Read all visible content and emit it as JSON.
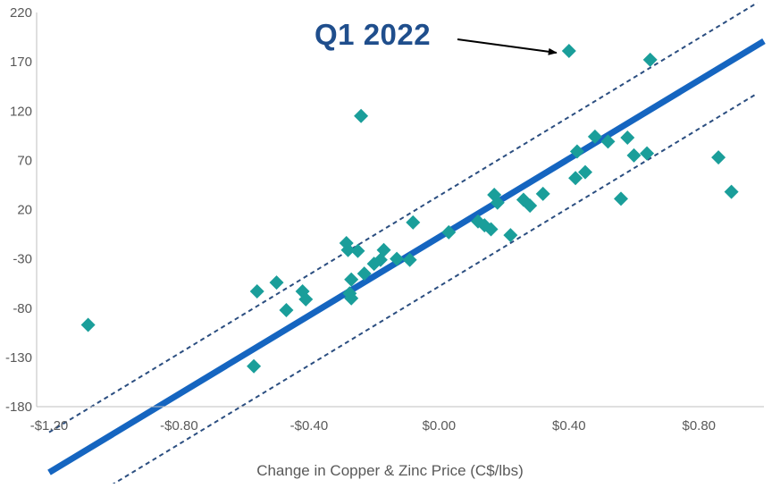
{
  "chart_data": {
    "type": "scatter",
    "title": "",
    "xlabel": "Change in Copper & Zinc Price (C$/lbs)",
    "ylabel": "",
    "xlim": [
      -1.2,
      1.0
    ],
    "ylim": [
      -180,
      220
    ],
    "x_ticks": [
      -1.2,
      -0.8,
      -0.4,
      0.0,
      0.4,
      0.8
    ],
    "x_tick_labels": [
      "-$1.20",
      "-$0.80",
      "-$0.40",
      "$0.00",
      "$0.40",
      "$0.80"
    ],
    "y_ticks": [
      -180,
      -130,
      -80,
      -30,
      20,
      70,
      120,
      170,
      220
    ],
    "y_tick_labels": [
      "-180",
      "-130",
      "-80",
      "-30",
      "20",
      "70",
      "120",
      "170",
      "220"
    ],
    "grid": false,
    "legend": "none",
    "points": [
      {
        "x": -1.08,
        "y": -97
      },
      {
        "x": -0.57,
        "y": -139
      },
      {
        "x": -0.56,
        "y": -63
      },
      {
        "x": -0.5,
        "y": -54
      },
      {
        "x": -0.47,
        "y": -82
      },
      {
        "x": -0.42,
        "y": -63
      },
      {
        "x": -0.41,
        "y": -71
      },
      {
        "x": -0.285,
        "y": -14
      },
      {
        "x": -0.28,
        "y": -21
      },
      {
        "x": -0.275,
        "y": -65
      },
      {
        "x": -0.27,
        "y": -70
      },
      {
        "x": -0.27,
        "y": -51
      },
      {
        "x": -0.25,
        "y": -22
      },
      {
        "x": -0.24,
        "y": 115
      },
      {
        "x": -0.23,
        "y": -45
      },
      {
        "x": -0.2,
        "y": -35
      },
      {
        "x": -0.18,
        "y": -31
      },
      {
        "x": -0.17,
        "y": -21
      },
      {
        "x": -0.13,
        "y": -30
      },
      {
        "x": -0.09,
        "y": -31
      },
      {
        "x": -0.08,
        "y": 7
      },
      {
        "x": 0.03,
        "y": -3
      },
      {
        "x": 0.12,
        "y": 8
      },
      {
        "x": 0.14,
        "y": 4
      },
      {
        "x": 0.16,
        "y": 0
      },
      {
        "x": 0.17,
        "y": 35
      },
      {
        "x": 0.18,
        "y": 27
      },
      {
        "x": 0.22,
        "y": -6
      },
      {
        "x": 0.26,
        "y": 30
      },
      {
        "x": 0.28,
        "y": 24
      },
      {
        "x": 0.32,
        "y": 36
      },
      {
        "x": 0.4,
        "y": 181
      },
      {
        "x": 0.42,
        "y": 52
      },
      {
        "x": 0.425,
        "y": 79
      },
      {
        "x": 0.45,
        "y": 58
      },
      {
        "x": 0.48,
        "y": 94
      },
      {
        "x": 0.52,
        "y": 89
      },
      {
        "x": 0.56,
        "y": 31
      },
      {
        "x": 0.58,
        "y": 93
      },
      {
        "x": 0.6,
        "y": 75
      },
      {
        "x": 0.64,
        "y": 77
      },
      {
        "x": 0.65,
        "y": 172
      },
      {
        "x": 0.86,
        "y": 73
      },
      {
        "x": 0.9,
        "y": 38
      }
    ],
    "regression_line": {
      "slope": 199,
      "intercept": -8,
      "x_range": [
        -1.2,
        1.0
      ]
    },
    "confidence_bands": [
      {
        "slope": 200,
        "intercept": 34,
        "x_range": [
          -1.2,
          0.98
        ]
      },
      {
        "slope": 200,
        "intercept": -58,
        "x_range": [
          -1.03,
          0.98
        ]
      }
    ],
    "annotations": [
      {
        "text": "Q1 2022",
        "target": {
          "x": 0.4,
          "y": 181
        }
      }
    ],
    "colors": {
      "points": "#1a9e9a",
      "regression_line": "#1565c0",
      "bands": "#2b4e80",
      "callout": "#1f4e8c",
      "axis": "#bfbfbf",
      "tick_text": "#595959"
    }
  }
}
